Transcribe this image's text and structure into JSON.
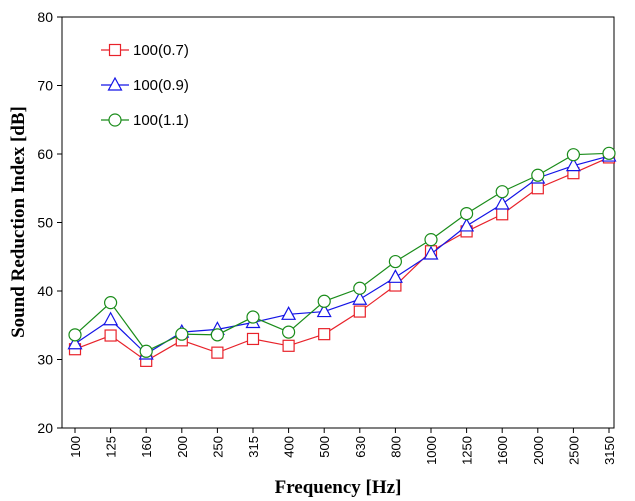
{
  "chart_data": {
    "type": "line",
    "title": "",
    "xlabel": "Frequency [Hz]",
    "ylabel": "Sound Reduction Index [dB]",
    "ylim": [
      20,
      80
    ],
    "yticks": [
      "20",
      "30",
      "40",
      "50",
      "60",
      "70",
      "80"
    ],
    "grid": false,
    "legend_position": "top-left",
    "categories": [
      "100",
      "125",
      "160",
      "200",
      "250",
      "315",
      "400",
      "500",
      "630",
      "800",
      "1000",
      "1250",
      "1600",
      "2000",
      "2500",
      "3150"
    ],
    "series": [
      {
        "name": "100(0.7)",
        "color": "#e8222a",
        "marker": "square",
        "values": [
          31.5,
          33.5,
          29.8,
          32.8,
          31.0,
          33.0,
          32.0,
          33.7,
          37.0,
          40.8,
          45.8,
          48.7,
          51.2,
          55.0,
          57.2,
          59.5
        ]
      },
      {
        "name": "100(0.9)",
        "color": "#1414e6",
        "marker": "triangle",
        "values": [
          32.3,
          35.8,
          30.8,
          34.0,
          34.4,
          35.4,
          36.6,
          37.0,
          38.8,
          42.0,
          45.4,
          49.5,
          52.7,
          56.5,
          58.3,
          59.7
        ]
      },
      {
        "name": "100(1.1)",
        "color": "#1a8c1a",
        "marker": "circle",
        "values": [
          33.6,
          38.3,
          31.2,
          33.7,
          33.6,
          36.2,
          34.0,
          38.5,
          40.4,
          44.3,
          47.5,
          51.3,
          54.5,
          56.9,
          59.9,
          60.1
        ]
      }
    ]
  }
}
